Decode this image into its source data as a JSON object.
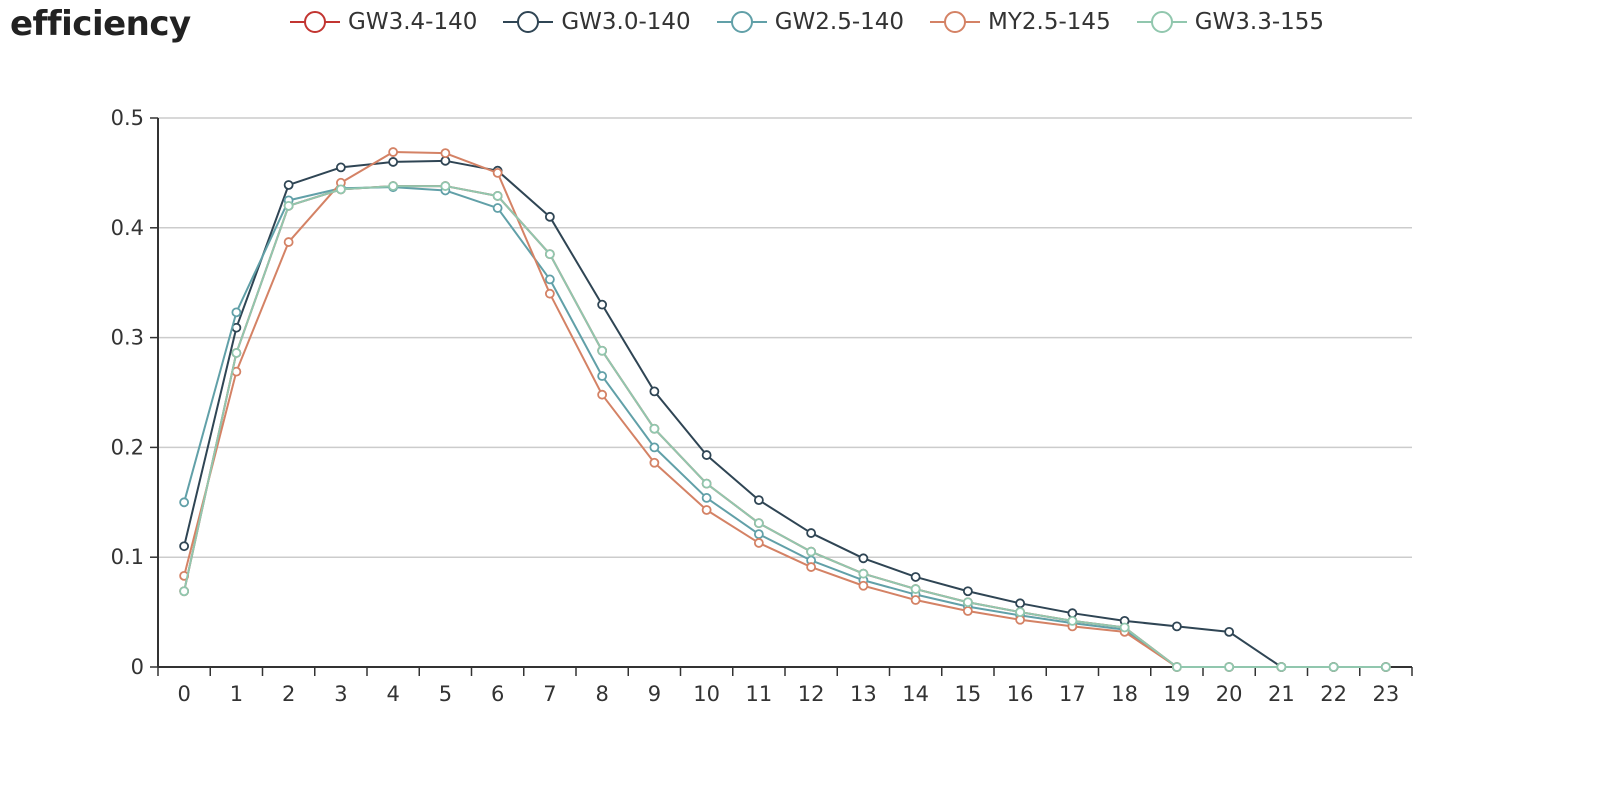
{
  "chart_data": {
    "type": "line",
    "title": "efficiency",
    "xlabel": "",
    "ylabel": "",
    "x": [
      "0",
      "1",
      "2",
      "3",
      "4",
      "5",
      "6",
      "7",
      "8",
      "9",
      "10",
      "11",
      "12",
      "13",
      "14",
      "15",
      "16",
      "17",
      "18",
      "19",
      "20",
      "21",
      "22",
      "23"
    ],
    "ylim": [
      0,
      0.5
    ],
    "yticks": [
      "0",
      "0.1",
      "0.2",
      "0.3",
      "0.4",
      "0.5"
    ],
    "grid": true,
    "legend_position": "top",
    "series": [
      {
        "name": "GW3.4-140",
        "color": "#c23531",
        "values": [
          0.069,
          0.286,
          0.42,
          0.435,
          0.438,
          0.438,
          0.429,
          0.376,
          0.288,
          0.217,
          0.167,
          0.131,
          0.105,
          0.085,
          0.071,
          0.059,
          0.05,
          0.042,
          0.036,
          0,
          0,
          0,
          0,
          0
        ]
      },
      {
        "name": "GW3.0-140",
        "color": "#2f4554",
        "values": [
          0.11,
          0.309,
          0.439,
          0.455,
          0.46,
          0.461,
          0.452,
          0.41,
          0.33,
          0.251,
          0.193,
          0.152,
          0.122,
          0.099,
          0.082,
          0.069,
          0.058,
          0.049,
          0.042,
          0.037,
          0.032,
          0,
          0,
          0
        ]
      },
      {
        "name": "GW2.5-140",
        "color": "#61a0a8",
        "values": [
          0.15,
          0.323,
          0.425,
          0.436,
          0.437,
          0.434,
          0.418,
          0.353,
          0.265,
          0.2,
          0.154,
          0.121,
          0.097,
          0.079,
          0.066,
          0.055,
          0.047,
          0.04,
          0.034,
          0,
          0,
          0,
          0,
          0
        ]
      },
      {
        "name": "MY2.5-145",
        "color": "#d48265",
        "values": [
          0.083,
          0.269,
          0.387,
          0.441,
          0.469,
          0.468,
          0.45,
          0.34,
          0.248,
          0.186,
          0.143,
          0.113,
          0.091,
          0.074,
          0.061,
          0.051,
          0.043,
          0.037,
          0.032,
          0,
          0,
          0,
          0,
          0
        ]
      },
      {
        "name": "GW3.3-155",
        "color": "#91c7ae",
        "values": [
          0.069,
          0.286,
          0.42,
          0.435,
          0.438,
          0.438,
          0.429,
          0.376,
          0.288,
          0.217,
          0.167,
          0.131,
          0.105,
          0.085,
          0.071,
          0.059,
          0.05,
          0.042,
          0.036,
          0,
          0,
          0,
          0,
          0
        ]
      }
    ]
  }
}
